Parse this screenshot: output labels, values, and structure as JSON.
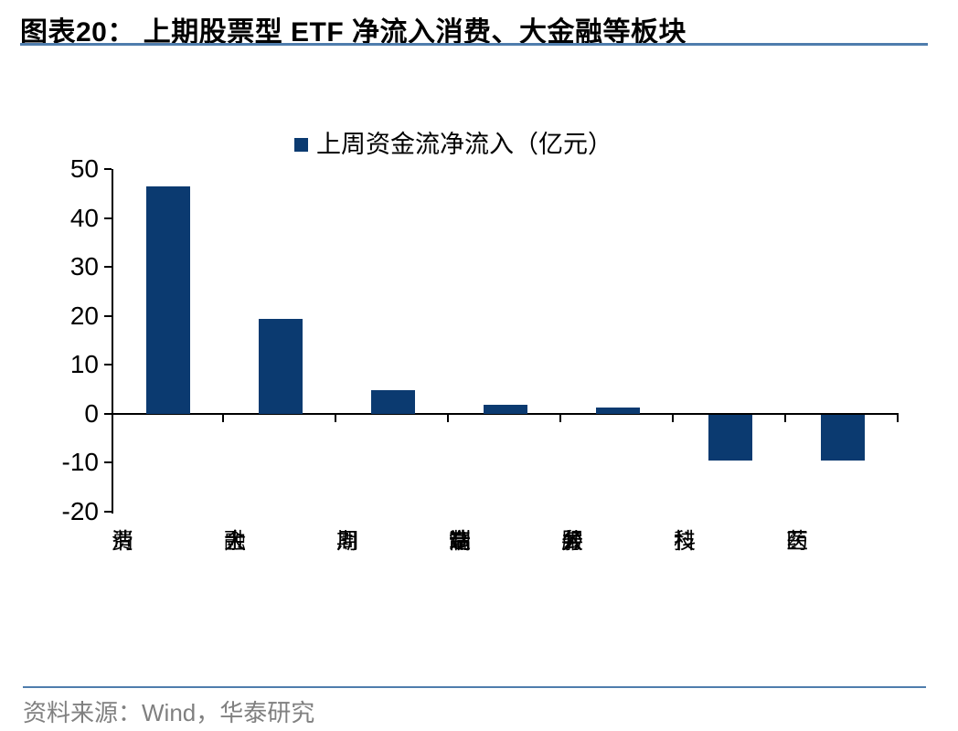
{
  "page": {
    "title": "图表20： 上期股票型 ETF 净流入消费、大金融等板块",
    "source": "资料来源：Wind，华泰研究"
  },
  "colors": {
    "bar": "#0b3a70",
    "rule_blue": "#4f7dad",
    "axis": "#000000",
    "source_text": "#808080"
  },
  "chart_data": {
    "type": "bar",
    "title": "图表20： 上期股票型 ETF 净流入消费、大金融等板块",
    "legend": "上周资金流净流入（亿元）",
    "legend_position": "top-center",
    "categories": [
      "消费",
      "大金融",
      "周期",
      "高端制造",
      "公共服务",
      "科技",
      "医药"
    ],
    "values": [
      46.4,
      19.4,
      4.8,
      1.8,
      1.2,
      -9.5,
      -9.5
    ],
    "unit": "亿元",
    "xlabel": "",
    "ylabel": "",
    "ylim": [
      -20,
      50
    ],
    "yticks": [
      50,
      40,
      30,
      20,
      10,
      0,
      -10,
      -20
    ],
    "grid": false,
    "category_label_orientation": "vertical"
  }
}
